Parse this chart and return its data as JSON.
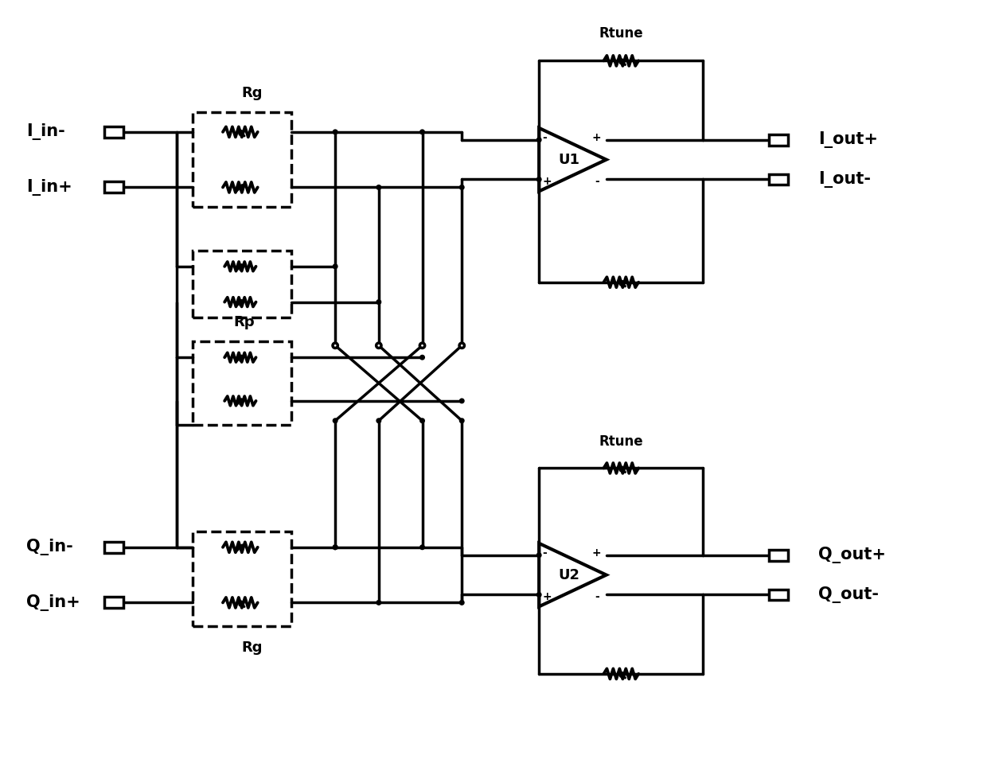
{
  "bg_color": "#ffffff",
  "line_color": "#000000",
  "lw": 2.5,
  "labels": {
    "I_in_minus": "I_in-",
    "I_in_plus": "I_in+",
    "I_out_plus": "I_out+",
    "I_out_minus": "I_out-",
    "Q_in_minus": "Q_in-",
    "Q_in_plus": "Q_in+",
    "Q_out_plus": "Q_out+",
    "Q_out_minus": "Q_out-",
    "Rg": "Rg",
    "Rg2": "Rg",
    "Rp": "Rp",
    "Rtune1": "Rtune",
    "Rtune2": "Rtune",
    "U1": "U1",
    "U2": "U2"
  }
}
